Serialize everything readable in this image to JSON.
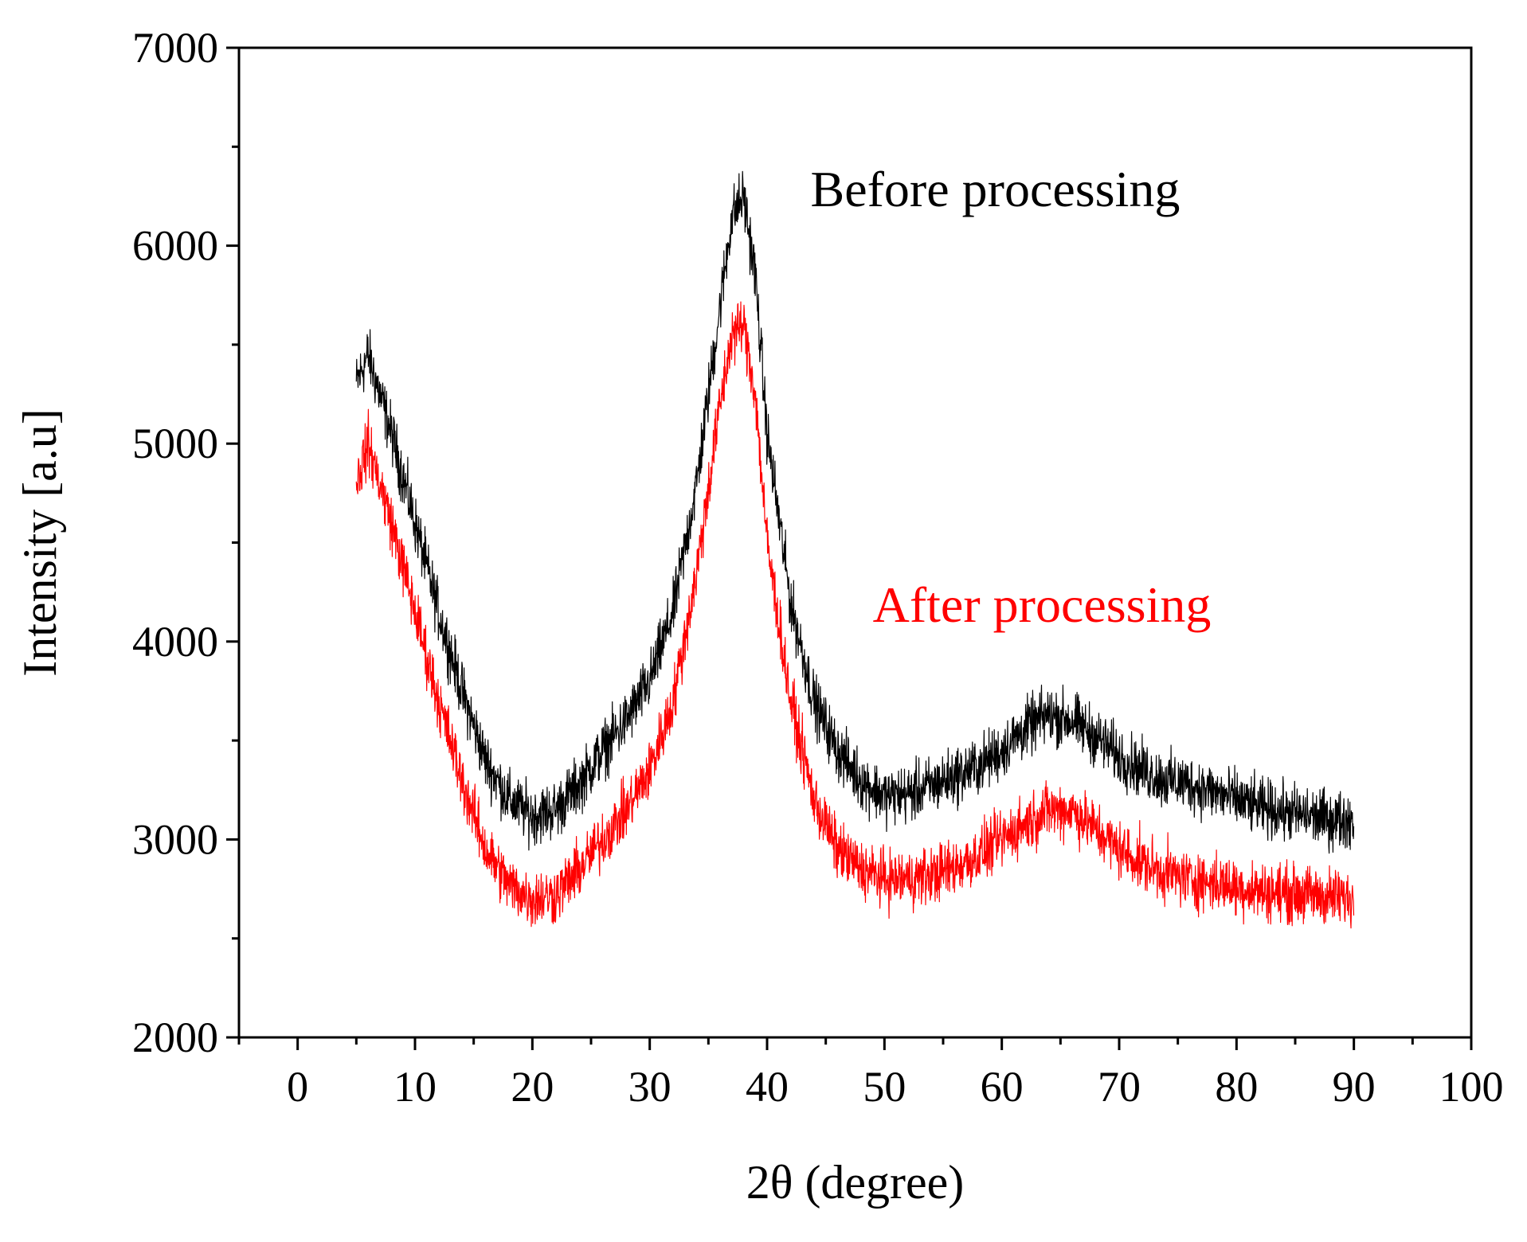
{
  "chart_data": {
    "type": "line",
    "title": "",
    "xlabel": "2θ (degree)",
    "ylabel": "Intensity [a.u]",
    "xlim": [
      -5,
      100
    ],
    "ylim": [
      2000,
      7000
    ],
    "xticks": [
      0,
      10,
      20,
      30,
      40,
      50,
      60,
      70,
      80,
      90,
      100
    ],
    "yticks": [
      2000,
      3000,
      4000,
      5000,
      6000,
      7000
    ],
    "x_minor_step": 5,
    "y_minor_step": 500,
    "grid": false,
    "series": [
      {
        "name": "Before processing",
        "color": "#000000",
        "noise": 110,
        "x": [
          5,
          6,
          8,
          10,
          12,
          14,
          16,
          18,
          20,
          22,
          24,
          26,
          28,
          30,
          32,
          34,
          36,
          37,
          38,
          39,
          40,
          42,
          44,
          46,
          48,
          50,
          52,
          54,
          56,
          58,
          60,
          62,
          64,
          66,
          68,
          70,
          72,
          74,
          76,
          78,
          80,
          82,
          84,
          86,
          88,
          90
        ],
        "values": [
          5300,
          5450,
          5050,
          4600,
          4150,
          3750,
          3400,
          3200,
          3120,
          3150,
          3280,
          3450,
          3600,
          3800,
          4150,
          4800,
          5700,
          6150,
          6250,
          5850,
          5050,
          4200,
          3700,
          3450,
          3300,
          3220,
          3230,
          3270,
          3320,
          3370,
          3450,
          3560,
          3630,
          3600,
          3520,
          3420,
          3350,
          3300,
          3280,
          3240,
          3200,
          3160,
          3140,
          3120,
          3100,
          3100
        ]
      },
      {
        "name": "After processing",
        "color": "#ff0000",
        "noise": 110,
        "x": [
          5,
          6,
          8,
          10,
          12,
          14,
          16,
          18,
          20,
          22,
          24,
          26,
          28,
          30,
          32,
          34,
          36,
          37,
          38,
          39,
          40,
          42,
          44,
          46,
          48,
          50,
          52,
          54,
          56,
          58,
          60,
          62,
          64,
          66,
          68,
          70,
          72,
          74,
          76,
          78,
          80,
          82,
          84,
          86,
          88,
          90
        ],
        "values": [
          4800,
          5000,
          4600,
          4150,
          3700,
          3300,
          2950,
          2770,
          2700,
          2720,
          2850,
          3000,
          3150,
          3350,
          3700,
          4350,
          5200,
          5550,
          5600,
          5250,
          4500,
          3700,
          3200,
          2950,
          2850,
          2800,
          2800,
          2820,
          2860,
          2920,
          3000,
          3080,
          3150,
          3150,
          3050,
          2950,
          2880,
          2830,
          2800,
          2780,
          2760,
          2740,
          2730,
          2720,
          2710,
          2700
        ]
      }
    ],
    "annotations": [
      {
        "text": "Before processing",
        "x": 43.7,
        "y": 6200,
        "color": "#000000"
      },
      {
        "text": "After processing",
        "x": 49,
        "y": 4100,
        "color": "#ff0000"
      }
    ]
  }
}
